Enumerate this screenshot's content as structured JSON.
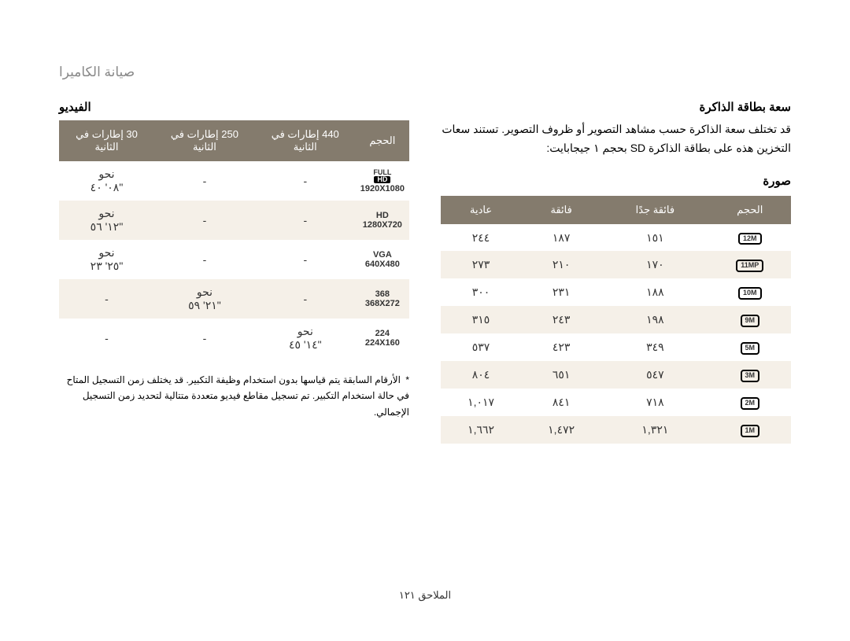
{
  "pageTitle": "صيانة الكاميرا",
  "memorySection": {
    "title": "سعة بطاقة الذاكرة",
    "description": "قد تختلف سعة الذاكرة حسب مشاهد التصوير أو ظروف التصوير. تستند سعات التخزين هذه على بطاقة الذاكرة SD بحجم ١ جيجابايت:"
  },
  "imageSubheading": "صورة",
  "imageTable": {
    "headers": [
      "الحجم",
      "فائقة جدًا",
      "فائقة",
      "عادية"
    ],
    "rows": [
      {
        "icon": "12M",
        "vals": [
          "١٥١",
          "١٨٧",
          "٢٤٤"
        ]
      },
      {
        "icon": "11MP",
        "small": "P",
        "vals": [
          "١٧٠",
          "٢١٠",
          "٢٧٣"
        ]
      },
      {
        "icon": "10M",
        "vals": [
          "١٨٨",
          "٢٣١",
          "٣٠٠"
        ]
      },
      {
        "icon": "9M",
        "vals": [
          "١٩٨",
          "٢٤٣",
          "٣١٥"
        ]
      },
      {
        "icon": "5M",
        "vals": [
          "٣٤٩",
          "٤٢٣",
          "٥٣٧"
        ]
      },
      {
        "icon": "3M",
        "vals": [
          "٥٤٧",
          "٦٥١",
          "٨٠٤"
        ]
      },
      {
        "icon": "2M",
        "vals": [
          "٧١٨",
          "٨٤١",
          "١,٠١٧"
        ]
      },
      {
        "icon": "1M",
        "vals": [
          "١,٣٢١",
          "١,٤٧٢",
          "١,٦٦٢"
        ]
      }
    ]
  },
  "videoSection": {
    "title": "الفيديو"
  },
  "videoTable": {
    "headers": [
      "الحجم",
      "440 إطارات في الثانية",
      "250 إطارات في الثانية",
      "30 إطارات في الثانية"
    ],
    "rows": [
      {
        "topLabel": "FULL",
        "badge": "HD",
        "res": "1920X1080",
        "c440": "-",
        "c250": "-",
        "c30top": "نحو",
        "c30": "٠٨' ٤٠\""
      },
      {
        "topLabel": "HD",
        "res": "1280X720",
        "c440": "-",
        "c250": "-",
        "c30top": "نحو",
        "c30": "١٢' ٥٦\""
      },
      {
        "topLabel": "VGA",
        "res": "640X480",
        "c440": "-",
        "c250": "-",
        "c30top": "نحو",
        "c30": "٢٥' ٢٣\""
      },
      {
        "num": "368",
        "res": "368X272",
        "c440": "-",
        "c250top": "نحو",
        "c250": "٢١' ٥٩\"",
        "c30": "-"
      },
      {
        "num": "224",
        "res": "224X160",
        "c440top": "نحو",
        "c440": "١٤' ٤٥\"",
        "c250": "-",
        "c30": "-"
      }
    ]
  },
  "footnote": "الأرقام السابقة يتم قياسها بدون استخدام وظيفة التكبير. قد يختلف زمن التسجيل المتاح في حالة استخدام التكبير. تم تسجيل مقاطع فيديو متعددة متتالية لتحديد زمن التسجيل الإجمالي.",
  "pageNumber": "الملاحق ١٢١",
  "colors": {
    "headerBg": "#847b6d",
    "altRowBg": "#f5f0e8"
  }
}
